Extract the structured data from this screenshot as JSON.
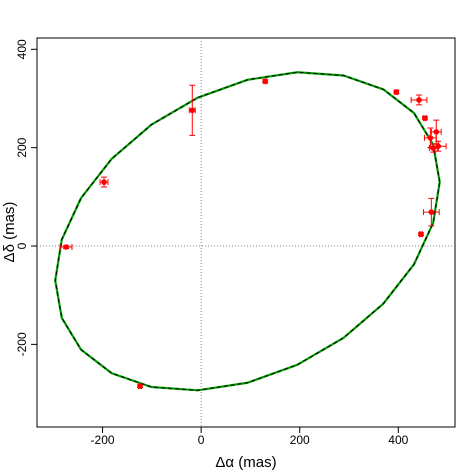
{
  "chart_data": {
    "type": "scatter",
    "x_label": "Δα (mas)",
    "y_label": "Δδ (mas)",
    "xlim": [
      -333,
      515
    ],
    "ylim": [
      -368,
      423
    ],
    "xticks": [
      -200,
      0,
      200,
      400
    ],
    "yticks": [
      -200,
      0,
      200,
      400
    ],
    "zero_lines": true,
    "orbit": {
      "color": "#00a000",
      "dash_color": "#000000",
      "x": [
        484,
        470.7,
        431.7,
        369.7,
        289,
        195,
        94,
        -7,
        -101,
        -181.7,
        -243.7,
        -282.7,
        -296,
        -282.7,
        -243.7,
        -181.7,
        -101,
        -7,
        94,
        195,
        289,
        369.7,
        431.7,
        470.7,
        484
      ],
      "y": [
        130,
        206.3,
        270.6,
        318.5,
        346.7,
        353.4,
        338,
        301.6,
        246.7,
        177.1,
        97.4,
        13.1,
        -70,
        -146.3,
        -210.6,
        -258.5,
        -286.7,
        -293.4,
        -278,
        -241.6,
        -186.7,
        -117.1,
        -37.4,
        46.9,
        130
      ]
    },
    "series": [
      {
        "color": "#ff0000",
        "x": [
          -274,
          -197,
          -18,
          130,
          396,
          442,
          454,
          465,
          477,
          481,
          471,
          467,
          446,
          -124
        ],
        "y": [
          -2,
          130,
          276,
          335,
          313,
          297,
          260,
          220,
          232,
          203,
          199,
          69,
          24,
          -285
        ],
        "xerr": [
          12,
          8,
          6,
          3,
          3,
          16,
          3,
          12,
          10,
          16,
          8,
          16,
          3,
          3
        ],
        "yerr": [
          3,
          10,
          51,
          3,
          3,
          10,
          3,
          20,
          24,
          10,
          8,
          28,
          3,
          3
        ]
      }
    ]
  }
}
